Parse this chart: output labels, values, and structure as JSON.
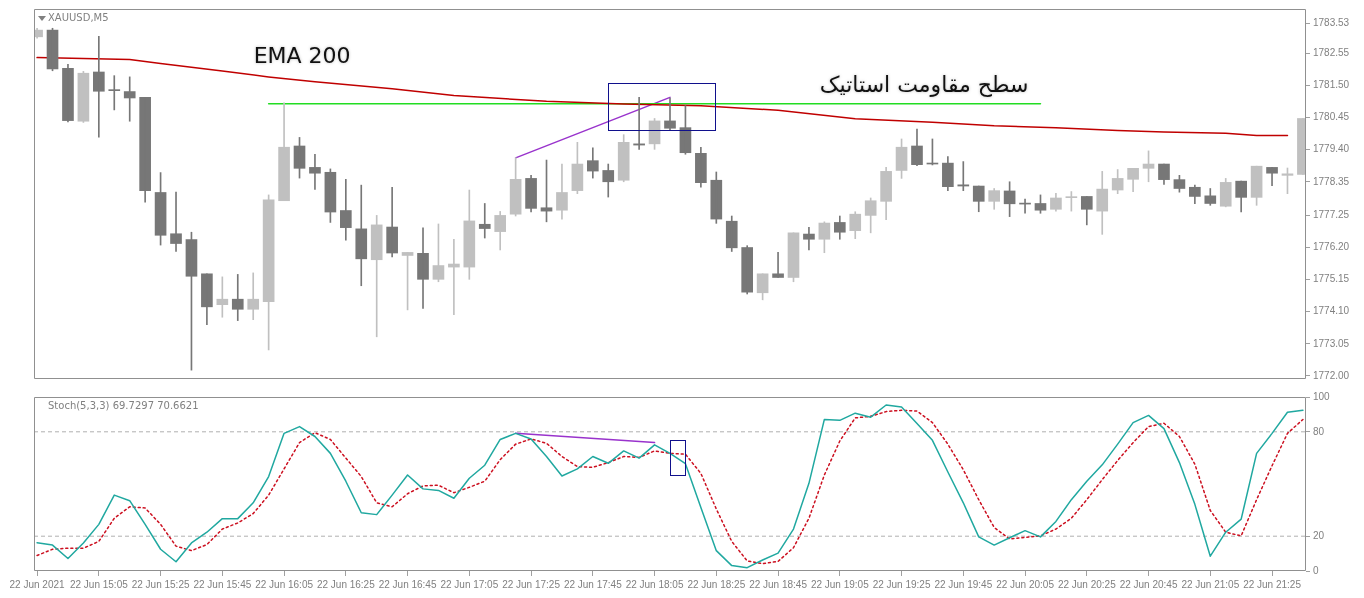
{
  "chart_data": [
    {
      "type": "candlestick",
      "title": "XAUUSD,M5",
      "tick_labels": "y",
      "x": [
        "2021-06-22T14:45",
        "2021-06-22T14:50",
        "2021-06-22T14:55",
        "2021-06-22T15:00",
        "2021-06-22T15:05",
        "2021-06-22T15:10",
        "2021-06-22T15:15",
        "2021-06-22T15:20",
        "2021-06-22T15:25",
        "2021-06-22T15:30",
        "2021-06-22T15:35",
        "2021-06-22T15:40",
        "2021-06-22T15:45",
        "2021-06-22T15:50",
        "2021-06-22T15:55",
        "2021-06-22T16:00",
        "2021-06-22T16:05",
        "2021-06-22T16:10",
        "2021-06-22T16:15",
        "2021-06-22T16:20",
        "2021-06-22T16:25",
        "2021-06-22T16:30",
        "2021-06-22T16:35",
        "2021-06-22T16:40",
        "2021-06-22T16:45",
        "2021-06-22T16:50",
        "2021-06-22T16:55",
        "2021-06-22T17:00",
        "2021-06-22T17:05",
        "2021-06-22T17:10",
        "2021-06-22T17:15",
        "2021-06-22T17:20",
        "2021-06-22T17:25",
        "2021-06-22T17:30",
        "2021-06-22T17:35",
        "2021-06-22T17:40",
        "2021-06-22T17:45",
        "2021-06-22T17:50",
        "2021-06-22T17:55",
        "2021-06-22T18:00",
        "2021-06-22T18:05",
        "2021-06-22T18:10",
        "2021-06-22T18:15",
        "2021-06-22T18:20",
        "2021-06-22T18:25",
        "2021-06-22T18:30",
        "2021-06-22T18:35",
        "2021-06-22T18:40",
        "2021-06-22T18:45",
        "2021-06-22T18:50",
        "2021-06-22T18:55",
        "2021-06-22T19:00",
        "2021-06-22T19:05",
        "2021-06-22T19:10",
        "2021-06-22T19:15",
        "2021-06-22T19:20",
        "2021-06-22T19:25",
        "2021-06-22T19:30",
        "2021-06-22T19:35",
        "2021-06-22T19:40",
        "2021-06-22T19:45",
        "2021-06-22T19:50",
        "2021-06-22T19:55",
        "2021-06-22T20:00",
        "2021-06-22T20:05",
        "2021-06-22T20:10",
        "2021-06-22T20:15",
        "2021-06-22T20:20",
        "2021-06-22T20:25",
        "2021-06-22T20:30",
        "2021-06-22T20:35",
        "2021-06-22T20:40",
        "2021-06-22T20:45",
        "2021-06-22T20:50",
        "2021-06-22T20:55",
        "2021-06-22T21:00",
        "2021-06-22T21:05",
        "2021-06-22T21:10",
        "2021-06-22T21:15",
        "2021-06-22T21:20",
        "2021-06-22T21:25",
        "2021-06-22T21:30",
        "2021-06-22T21:35"
      ],
      "ohlc": [
        [
          1783.09,
          1783.37,
          1783.05,
          1783.31
        ],
        [
          1783.31,
          1783.37,
          1781.98,
          1782.04
        ],
        [
          1782.06,
          1782.19,
          1780.31,
          1780.35
        ],
        [
          1780.33,
          1781.96,
          1780.29,
          1781.9
        ],
        [
          1781.94,
          1783.11,
          1779.81,
          1781.31
        ],
        [
          1781.35,
          1781.82,
          1780.7,
          1781.33
        ],
        [
          1781.3,
          1781.78,
          1780.33,
          1781.09
        ],
        [
          1781.11,
          1781.11,
          1777.68,
          1778.06
        ],
        [
          1778.0,
          1778.65,
          1776.28,
          1776.6
        ],
        [
          1776.65,
          1778.01,
          1776.07,
          1776.33
        ],
        [
          1776.46,
          1776.7,
          1772.19,
          1775.26
        ],
        [
          1775.34,
          1775.34,
          1773.68,
          1774.26
        ],
        [
          1774.33,
          1775.24,
          1773.92,
          1774.51
        ],
        [
          1774.51,
          1775.32,
          1773.81,
          1774.18
        ],
        [
          1774.18,
          1775.37,
          1773.84,
          1774.51
        ],
        [
          1774.43,
          1777.92,
          1772.85,
          1777.76
        ],
        [
          1777.73,
          1780.93,
          1777.73,
          1779.48
        ],
        [
          1779.52,
          1779.8,
          1778.47,
          1778.79
        ],
        [
          1778.82,
          1779.25,
          1778.1,
          1778.63
        ],
        [
          1778.66,
          1778.77,
          1777.02,
          1777.36
        ],
        [
          1777.41,
          1778.43,
          1776.44,
          1776.85
        ],
        [
          1776.81,
          1778.24,
          1774.95,
          1775.83
        ],
        [
          1775.8,
          1777.25,
          1773.28,
          1776.94
        ],
        [
          1776.87,
          1778.17,
          1775.89,
          1776.02
        ],
        [
          1775.94,
          1776.04,
          1774.16,
          1776.04
        ],
        [
          1776.01,
          1776.84,
          1774.21,
          1775.16
        ],
        [
          1775.16,
          1776.97,
          1775.08,
          1775.61
        ],
        [
          1775.56,
          1776.47,
          1774.0,
          1775.66
        ],
        [
          1775.56,
          1778.08,
          1775.16,
          1777.07
        ],
        [
          1776.96,
          1777.64,
          1776.51,
          1776.82
        ],
        [
          1776.72,
          1777.38,
          1776.12,
          1777.25
        ],
        [
          1777.29,
          1779.14,
          1777.23,
          1778.43
        ],
        [
          1778.46,
          1778.56,
          1777.36,
          1777.48
        ],
        [
          1777.5,
          1779.06,
          1777.04,
          1777.39
        ],
        [
          1777.42,
          1778.93,
          1777.13,
          1778.0
        ],
        [
          1778.06,
          1779.64,
          1777.96,
          1778.93
        ],
        [
          1779.04,
          1779.46,
          1778.47,
          1778.7
        ],
        [
          1778.72,
          1778.93,
          1777.85,
          1778.35
        ],
        [
          1778.4,
          1779.89,
          1778.35,
          1779.64
        ],
        [
          1779.59,
          1781.11,
          1779.41,
          1779.55
        ],
        [
          1779.59,
          1780.42,
          1779.41,
          1780.34
        ],
        [
          1780.34,
          1781.09,
          1780.05,
          1780.1
        ],
        [
          1780.12,
          1780.84,
          1779.25,
          1779.3
        ],
        [
          1779.28,
          1779.48,
          1778.17,
          1778.32
        ],
        [
          1778.4,
          1778.67,
          1776.99,
          1777.13
        ],
        [
          1777.06,
          1777.23,
          1776.07,
          1776.19
        ],
        [
          1776.2,
          1776.26,
          1774.68,
          1774.74
        ],
        [
          1774.72,
          1775.34,
          1774.49,
          1775.34
        ],
        [
          1775.34,
          1776.04,
          1775.22,
          1775.22
        ],
        [
          1775.22,
          1776.68,
          1775.08,
          1776.68
        ],
        [
          1776.64,
          1776.86,
          1776.12,
          1776.47
        ],
        [
          1776.47,
          1777.04,
          1776.03,
          1777.0
        ],
        [
          1777.02,
          1777.23,
          1776.47,
          1776.7
        ],
        [
          1776.75,
          1777.37,
          1776.49,
          1777.29
        ],
        [
          1777.25,
          1777.82,
          1776.68,
          1777.73
        ],
        [
          1777.71,
          1778.82,
          1777.11,
          1778.69
        ],
        [
          1778.72,
          1779.75,
          1778.46,
          1779.48
        ],
        [
          1779.52,
          1780.07,
          1778.88,
          1778.91
        ],
        [
          1778.95,
          1779.75,
          1778.9,
          1778.93
        ],
        [
          1778.96,
          1779.17,
          1778.06,
          1778.19
        ],
        [
          1778.25,
          1779.01,
          1778.06,
          1778.21
        ],
        [
          1778.21,
          1778.21,
          1777.37,
          1777.71
        ],
        [
          1777.71,
          1778.13,
          1777.45,
          1778.06
        ],
        [
          1778.05,
          1778.35,
          1777.21,
          1777.63
        ],
        [
          1777.65,
          1777.78,
          1777.32,
          1777.62
        ],
        [
          1777.64,
          1777.92,
          1777.32,
          1777.42
        ],
        [
          1777.45,
          1777.97,
          1777.39,
          1777.82
        ],
        [
          1777.83,
          1778.03,
          1777.39,
          1777.86
        ],
        [
          1777.87,
          1777.87,
          1776.94,
          1777.45
        ],
        [
          1777.39,
          1778.69,
          1776.63,
          1778.11
        ],
        [
          1778.08,
          1778.75,
          1777.96,
          1778.46
        ],
        [
          1778.43,
          1778.79,
          1778.03,
          1778.79
        ],
        [
          1778.79,
          1779.36,
          1778.35,
          1778.93
        ],
        [
          1778.93,
          1778.93,
          1778.26,
          1778.42
        ],
        [
          1778.42,
          1778.56,
          1778.01,
          1778.13
        ],
        [
          1778.17,
          1778.24,
          1777.63,
          1777.87
        ],
        [
          1777.89,
          1778.13,
          1777.58,
          1777.64
        ],
        [
          1777.55,
          1778.46,
          1777.53,
          1778.33
        ],
        [
          1778.37,
          1778.37,
          1777.36,
          1777.84
        ],
        [
          1777.84,
          1778.86,
          1777.58,
          1778.86
        ],
        [
          1778.82,
          1778.82,
          1778.22,
          1778.63
        ],
        [
          1778.56,
          1778.8,
          1777.96,
          1778.61
        ],
        [
          1778.59,
          1780.42,
          1778.59,
          1780.42
        ]
      ],
      "colors": [
        "#c0c0c0",
        "#777777",
        "#777777",
        "#c0c0c0",
        "#777777",
        "#777777",
        "#777777",
        "#777777",
        "#777777",
        "#777777",
        "#777777",
        "#777777",
        "#c0c0c0",
        "#777777",
        "#c0c0c0",
        "#c0c0c0",
        "#c0c0c0",
        "#777777",
        "#777777",
        "#777777",
        "#777777",
        "#777777",
        "#c0c0c0",
        "#777777",
        "#c0c0c0",
        "#777777",
        "#c0c0c0",
        "#c0c0c0",
        "#c0c0c0",
        "#777777",
        "#c0c0c0",
        "#c0c0c0",
        "#777777",
        "#777777",
        "#c0c0c0",
        "#c0c0c0",
        "#777777",
        "#777777",
        "#c0c0c0",
        "#777777",
        "#c0c0c0",
        "#777777",
        "#777777",
        "#777777",
        "#777777",
        "#777777",
        "#777777",
        "#c0c0c0",
        "#777777",
        "#c0c0c0",
        "#777777",
        "#c0c0c0",
        "#777777",
        "#c0c0c0",
        "#c0c0c0",
        "#c0c0c0",
        "#c0c0c0",
        "#777777",
        "#777777",
        "#777777",
        "#777777",
        "#777777",
        "#c0c0c0",
        "#777777",
        "#777777",
        "#777777",
        "#c0c0c0",
        "#c0c0c0",
        "#777777",
        "#c0c0c0",
        "#c0c0c0",
        "#c0c0c0",
        "#c0c0c0",
        "#777777",
        "#777777",
        "#777777",
        "#777777",
        "#c0c0c0",
        "#777777",
        "#c0c0c0",
        "#777777",
        "#c0c0c0",
        "#c0c0c0"
      ],
      "series": [
        {
          "type": "line",
          "name": "EMA 200",
          "color": "#c00000",
          "x": [
            "2021-06-22T14:45",
            "2021-06-22T15:00",
            "2021-06-22T15:15",
            "2021-06-22T15:25",
            "2021-06-22T15:45",
            "2021-06-22T16:00",
            "2021-06-22T16:15",
            "2021-06-22T16:40",
            "2021-06-22T17:00",
            "2021-06-22T17:30",
            "2021-06-22T17:55",
            "2021-06-22T18:20",
            "2021-06-22T18:45",
            "2021-06-22T19:10",
            "2021-06-22T19:35",
            "2021-06-22T19:55",
            "2021-06-22T20:15",
            "2021-06-22T20:35",
            "2021-06-22T20:50",
            "2021-06-22T21:10",
            "2021-06-22T21:20",
            "2021-06-22T21:30"
          ],
          "values": [
            1782.41,
            1782.38,
            1782.35,
            1782.22,
            1781.97,
            1781.78,
            1781.62,
            1781.39,
            1781.17,
            1780.98,
            1780.89,
            1780.84,
            1780.69,
            1780.41,
            1780.3,
            1780.18,
            1780.12,
            1780.03,
            1779.98,
            1779.94,
            1779.86,
            1779.86
          ]
        },
        {
          "type": "line",
          "name": "سطح مقاومت استاتیک",
          "color": "#22dd22",
          "x": [
            "2021-06-22T16:00",
            "2021-06-22T20:10"
          ],
          "values": [
            1780.9,
            1780.9
          ]
        },
        {
          "type": "line",
          "color": "#9933cc",
          "x": [
            "2021-06-22T17:20",
            "2021-06-22T18:10"
          ],
          "values": [
            1779.13,
            1781.11
          ]
        }
      ],
      "xlim": [
        "2021-06-22T14:44",
        "2021-06-22T21:36"
      ],
      "ylim": [
        1771.9,
        1784.0
      ],
      "yticks": [
        {
          "value": 1772.0,
          "label": "1772.00"
        },
        {
          "value": 1773.05,
          "label": "1773.05"
        },
        {
          "value": 1774.1,
          "label": "1774.10"
        },
        {
          "value": 1775.15,
          "label": "1775.15"
        },
        {
          "value": 1776.2,
          "label": "1776.20"
        },
        {
          "value": 1777.25,
          "label": "1777.25"
        },
        {
          "value": 1778.35,
          "label": "1778.35"
        },
        {
          "value": 1779.4,
          "label": "1779.40"
        },
        {
          "value": 1780.45,
          "label": "1780.45"
        },
        {
          "value": 1781.5,
          "label": "1781.50"
        },
        {
          "value": 1782.55,
          "label": "1782.55"
        },
        {
          "value": 1783.53,
          "label": "1783.53"
        }
      ]
    },
    {
      "type": "line",
      "title": "Stoch(5,3,3) 69.7297 70.6621",
      "x": [
        "2021-06-22T14:45",
        "2021-06-22T14:50",
        "2021-06-22T14:55",
        "2021-06-22T15:00",
        "2021-06-22T15:05",
        "2021-06-22T15:10",
        "2021-06-22T15:15",
        "2021-06-22T15:20",
        "2021-06-22T15:25",
        "2021-06-22T15:30",
        "2021-06-22T15:35",
        "2021-06-22T15:40",
        "2021-06-22T15:45",
        "2021-06-22T15:50",
        "2021-06-22T15:55",
        "2021-06-22T16:00",
        "2021-06-22T16:05",
        "2021-06-22T16:10",
        "2021-06-22T16:15",
        "2021-06-22T16:20",
        "2021-06-22T16:25",
        "2021-06-22T16:30",
        "2021-06-22T16:35",
        "2021-06-22T16:40",
        "2021-06-22T16:45",
        "2021-06-22T16:50",
        "2021-06-22T16:55",
        "2021-06-22T17:00",
        "2021-06-22T17:05",
        "2021-06-22T17:10",
        "2021-06-22T17:15",
        "2021-06-22T17:20",
        "2021-06-22T17:25",
        "2021-06-22T17:30",
        "2021-06-22T17:35",
        "2021-06-22T17:40",
        "2021-06-22T17:45",
        "2021-06-22T17:50",
        "2021-06-22T17:55",
        "2021-06-22T18:00",
        "2021-06-22T18:05",
        "2021-06-22T18:10",
        "2021-06-22T18:15",
        "2021-06-22T18:20",
        "2021-06-22T18:25",
        "2021-06-22T18:30",
        "2021-06-22T18:35",
        "2021-06-22T18:40",
        "2021-06-22T18:45",
        "2021-06-22T18:50",
        "2021-06-22T18:55",
        "2021-06-22T19:00",
        "2021-06-22T19:05",
        "2021-06-22T19:10",
        "2021-06-22T19:15",
        "2021-06-22T19:20",
        "2021-06-22T19:25",
        "2021-06-22T19:30",
        "2021-06-22T19:35",
        "2021-06-22T19:40",
        "2021-06-22T19:45",
        "2021-06-22T19:50",
        "2021-06-22T19:55",
        "2021-06-22T20:00",
        "2021-06-22T20:05",
        "2021-06-22T20:10",
        "2021-06-22T20:15",
        "2021-06-22T20:20",
        "2021-06-22T20:25",
        "2021-06-22T20:30",
        "2021-06-22T20:35",
        "2021-06-22T20:40",
        "2021-06-22T20:45",
        "2021-06-22T20:50",
        "2021-06-22T20:55",
        "2021-06-22T21:00",
        "2021-06-22T21:05",
        "2021-06-22T21:10",
        "2021-06-22T21:15",
        "2021-06-22T21:20",
        "2021-06-22T21:25",
        "2021-06-22T21:30",
        "2021-06-22T21:35"
      ],
      "series": [
        {
          "color": "#20a8a0",
          "values": [
            16.3,
            14.9,
            7.2,
            16.1,
            26.8,
            43.6,
            40.4,
            26.8,
            12.5,
            5.3,
            16.1,
            22.3,
            30.1,
            30.1,
            39.2,
            54.3,
            79.1,
            83,
            77.3,
            67.6,
            51.6,
            33.5,
            32.4,
            43.6,
            55.2,
            47.2,
            46.3,
            41.8,
            53.3,
            60.8,
            75.6,
            79.1,
            75.9,
            65.8,
            54.6,
            58.7,
            65.8,
            61.9,
            69,
            64.9,
            72.5,
            67.6,
            61.7,
            36.5,
            11.7,
            3.1,
            1.9,
            6.3,
            10.3,
            24.1,
            50.4,
            87.1,
            86.6,
            90.7,
            88.4,
            95.4,
            94.2,
            84.8,
            75.1,
            56.9,
            39.2,
            19.6,
            14.9,
            19.1,
            23.2,
            19.6,
            28.5,
            41,
            51.6,
            61,
            72.9,
            85.3,
            89.4,
            81.8,
            62.3,
            38.3,
            8.5,
            22.3,
            29.8,
            67.6,
            79.1,
            91.2,
            92.4
          ]
        },
        {
          "color": "#cc1020",
          "line_style": "dotted",
          "values": [
            8.9,
            12.5,
            13.1,
            13.1,
            17,
            30.3,
            36.9,
            36.2,
            26.8,
            14.3,
            11.7,
            15.2,
            24.1,
            27.6,
            33,
            43.6,
            58.7,
            73.8,
            79.5,
            75.6,
            64.9,
            54.3,
            39.2,
            36.9,
            44.4,
            48.9,
            49.3,
            45,
            48.1,
            51.6,
            64,
            72.9,
            75.9,
            73.4,
            65.8,
            60,
            59.6,
            62.3,
            65.8,
            65.3,
            69,
            67.6,
            67.1,
            56.1,
            35.6,
            17,
            5.8,
            4.2,
            5.5,
            13.4,
            30.3,
            55.2,
            74.7,
            88,
            88.9,
            91.6,
            92.4,
            91.9,
            85.3,
            72.9,
            58.2,
            41,
            25,
            18.4,
            19.3,
            20.2,
            24.1,
            30.3,
            41,
            52.5,
            63.5,
            73.8,
            83,
            84.9,
            77.3,
            61.4,
            34.8,
            22.3,
            20.2,
            41,
            60.5,
            79.1,
            87.1
          ]
        },
        {
          "color": "#9933cc",
          "x": [
            "2021-06-22T17:20",
            "2021-06-22T18:05"
          ],
          "values": [
            79.1,
            73.8
          ]
        }
      ],
      "xlim": [
        "2021-06-22T14:44",
        "2021-06-22T21:36"
      ],
      "xticks": [
        {
          "value": "2021-06-22T14:45",
          "label": "22 Jun 2021"
        },
        {
          "value": "2021-06-22T15:05",
          "label": "22 Jun 15:05"
        },
        {
          "value": "2021-06-22T15:25",
          "label": "22 Jun 15:25"
        },
        {
          "value": "2021-06-22T15:45",
          "label": "22 Jun 15:45"
        },
        {
          "value": "2021-06-22T16:05",
          "label": "22 Jun 16:05"
        },
        {
          "value": "2021-06-22T16:25",
          "label": "22 Jun 16:25"
        },
        {
          "value": "2021-06-22T16:45",
          "label": "22 Jun 16:45"
        },
        {
          "value": "2021-06-22T17:05",
          "label": "22 Jun 17:05"
        },
        {
          "value": "2021-06-22T17:25",
          "label": "22 Jun 17:25"
        },
        {
          "value": "2021-06-22T17:45",
          "label": "22 Jun 17:45"
        },
        {
          "value": "2021-06-22T18:05",
          "label": "22 Jun 18:05"
        },
        {
          "value": "2021-06-22T18:25",
          "label": "22 Jun 18:25"
        },
        {
          "value": "2021-06-22T18:45",
          "label": "22 Jun 18:45"
        },
        {
          "value": "2021-06-22T19:05",
          "label": "22 Jun 19:05"
        },
        {
          "value": "2021-06-22T19:25",
          "label": "22 Jun 19:25"
        },
        {
          "value": "2021-06-22T19:45",
          "label": "22 Jun 19:45"
        },
        {
          "value": "2021-06-22T20:05",
          "label": "22 Jun 20:05"
        },
        {
          "value": "2021-06-22T20:25",
          "label": "22 Jun 20:25"
        },
        {
          "value": "2021-06-22T20:45",
          "label": "22 Jun 20:45"
        },
        {
          "value": "2021-06-22T21:05",
          "label": "22 Jun 21:05"
        },
        {
          "value": "2021-06-22T21:25",
          "label": "22 Jun 21:25"
        }
      ],
      "ylim": [
        0,
        100
      ],
      "yticks": [
        0,
        20,
        80,
        100
      ],
      "ref_lines": [
        {
          "axis": "y",
          "value": 20,
          "color": "#b0b0b0",
          "line_style": "dashed"
        },
        {
          "axis": "y",
          "value": 80,
          "color": "#b0b0b0",
          "line_style": "dashed"
        }
      ]
    }
  ]
}
